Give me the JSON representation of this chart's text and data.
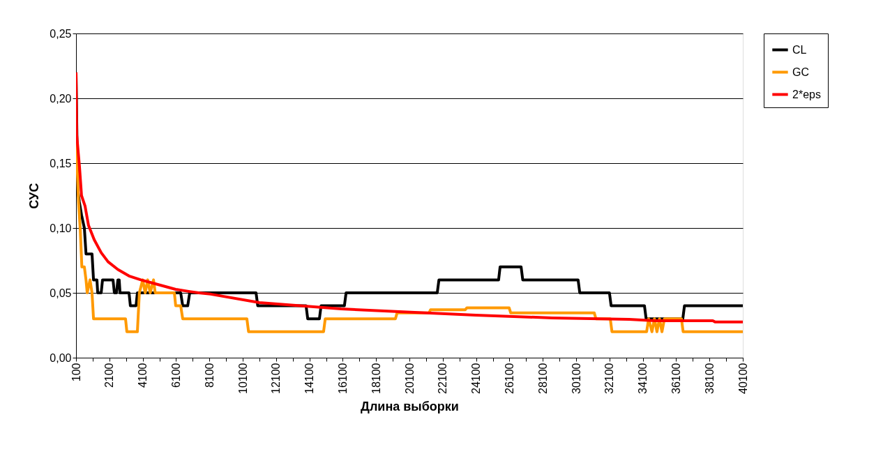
{
  "chart_data": {
    "type": "line",
    "xlabel": "Длина выборки",
    "ylabel": "СУС",
    "xlim": [
      100,
      40100
    ],
    "ylim": [
      0,
      0.25
    ],
    "xticks": [
      100,
      {
        "value": 1100,
        "label": null
      },
      2100,
      {
        "value": 3100,
        "label": null
      },
      4100,
      {
        "value": 5100,
        "label": null
      },
      6100,
      {
        "value": 7100,
        "label": null
      },
      8100,
      {
        "value": 9100,
        "label": null
      },
      10100,
      {
        "value": 11100,
        "label": null
      },
      12100,
      {
        "value": 13100,
        "label": null
      },
      14100,
      {
        "value": 15100,
        "label": null
      },
      16100,
      {
        "value": 17100,
        "label": null
      },
      18100,
      {
        "value": 19100,
        "label": null
      },
      20100,
      {
        "value": 21100,
        "label": null
      },
      22100,
      {
        "value": 23100,
        "label": null
      },
      24100,
      {
        "value": 25100,
        "label": null
      },
      26100,
      {
        "value": 27100,
        "label": null
      },
      28100,
      {
        "value": 29100,
        "label": null
      },
      30100,
      {
        "value": 31100,
        "label": null
      },
      32100,
      {
        "value": 33100,
        "label": null
      },
      34100,
      {
        "value": 35100,
        "label": null
      },
      36100,
      {
        "value": 37100,
        "label": null
      },
      38100,
      {
        "value": 39100,
        "label": null
      },
      40100
    ],
    "yticks": [
      {
        "value": 0,
        "label": "0,00"
      },
      {
        "value": 0.05,
        "label": "0,05"
      },
      {
        "value": 0.1,
        "label": "0,10"
      },
      {
        "value": 0.15,
        "label": "0,15"
      },
      {
        "value": 0.2,
        "label": "0,20"
      },
      {
        "value": 0.25,
        "label": "0,25"
      }
    ],
    "grid": "y",
    "legend": "right",
    "marker": "none",
    "line_style": "solid",
    "series": [
      {
        "name": "CL",
        "color": "#000000",
        "x": [
          100,
          200,
          300,
          430,
          600,
          700,
          1060,
          1150,
          1355,
          1400,
          1610,
          1690,
          2320,
          2400,
          2530,
          2610,
          2690,
          2740,
          3280,
          3360,
          3700,
          3780,
          6380,
          6500,
          6800,
          6920,
          10900,
          11000,
          13900,
          14000,
          14700,
          14800,
          16200,
          16300,
          21770,
          21870,
          25450,
          25540,
          26800,
          26900,
          30220,
          30320,
          32100,
          32200,
          34200,
          34300,
          36500,
          36600,
          40100
        ],
        "values": [
          0.22,
          0.13,
          0.12,
          0.11,
          0.1,
          0.08,
          0.08,
          0.06,
          0.06,
          0.05,
          0.05,
          0.06,
          0.06,
          0.05,
          0.05,
          0.06,
          0.06,
          0.05,
          0.05,
          0.04,
          0.04,
          0.05,
          0.05,
          0.04,
          0.04,
          0.05,
          0.05,
          0.04,
          0.04,
          0.03,
          0.03,
          0.04,
          0.04,
          0.05,
          0.05,
          0.06,
          0.06,
          0.07,
          0.07,
          0.06,
          0.06,
          0.05,
          0.05,
          0.04,
          0.04,
          0.03,
          0.03,
          0.04,
          0.04
        ]
      },
      {
        "name": "GC",
        "color": "#ff9900",
        "x": [
          100,
          250,
          350,
          450,
          600,
          700,
          770,
          940,
          1060,
          1150,
          3070,
          3150,
          3780,
          3900,
          4100,
          4250,
          4400,
          4550,
          4750,
          4850,
          6000,
          6080,
          6380,
          6500,
          10350,
          10450,
          14950,
          15050,
          19260,
          19360,
          21270,
          21370,
          23450,
          23550,
          26080,
          26180,
          31190,
          31290,
          32150,
          32250,
          34330,
          34450,
          34650,
          34800,
          34950,
          35100,
          35250,
          35400,
          36420,
          36520,
          40100
        ],
        "values": [
          0.17,
          0.12,
          0.1,
          0.07,
          0.07,
          0.06,
          0.05,
          0.06,
          0.05,
          0.03,
          0.03,
          0.02,
          0.02,
          0.05,
          0.06,
          0.05,
          0.06,
          0.05,
          0.06,
          0.05,
          0.05,
          0.04,
          0.04,
          0.03,
          0.03,
          0.02,
          0.02,
          0.03,
          0.03,
          0.0345,
          0.0345,
          0.037,
          0.037,
          0.0385,
          0.0385,
          0.0345,
          0.0345,
          0.03,
          0.03,
          0.02,
          0.02,
          0.03,
          0.02,
          0.03,
          0.02,
          0.03,
          0.02,
          0.03,
          0.03,
          0.02,
          0.02
        ]
      },
      {
        "name": "2*eps",
        "color": "#ff0000",
        "x": [
          100,
          140,
          310,
          430,
          640,
          850,
          1190,
          1610,
          2020,
          2610,
          3280,
          3990,
          4700,
          6080,
          6920,
          7460,
          8180,
          11100,
          16000,
          19500,
          24080,
          28680,
          33280,
          34830,
          38300,
          38450,
          40100
        ],
        "values": [
          0.22,
          0.172,
          0.147,
          0.125,
          0.117,
          0.102,
          0.091,
          0.081,
          0.074,
          0.068,
          0.063,
          0.06,
          0.0575,
          0.0527,
          0.051,
          0.05,
          0.049,
          0.0425,
          0.0376,
          0.0355,
          0.0328,
          0.0307,
          0.0296,
          0.0285,
          0.0285,
          0.0275,
          0.0275
        ]
      }
    ]
  }
}
